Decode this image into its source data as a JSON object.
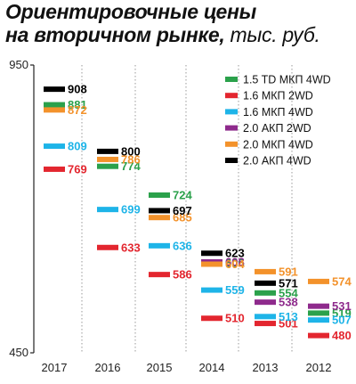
{
  "title": {
    "line1": "Ориентировочные цены",
    "line2": "на вторичном рынке,",
    "unit": " тыс. руб."
  },
  "colors": {
    "green": "#2ba14b",
    "red": "#e3262f",
    "blue": "#1eb4e8",
    "purple": "#8e2a8c",
    "orange": "#f3922b",
    "black": "#000000"
  },
  "chart_data": {
    "type": "scatter",
    "title": "Ориентировочные цены на вторичном рынке, тыс. руб.",
    "categories": [
      "2017",
      "2016",
      "2015",
      "2014",
      "2013",
      "2012"
    ],
    "ylim": [
      450,
      950
    ],
    "yticks": [
      450,
      950
    ],
    "legend_position": "top-right",
    "series": [
      {
        "name": "1.5 TD МКП 4WD",
        "color": "green",
        "values": [
          881,
          774,
          724,
          606,
          554,
          519
        ]
      },
      {
        "name": "1.6 МКП 2WD",
        "color": "red",
        "values": [
          769,
          633,
          586,
          510,
          501,
          480
        ]
      },
      {
        "name": "1.6 МКП 4WD",
        "color": "blue",
        "values": [
          809,
          699,
          636,
          559,
          513,
          507
        ]
      },
      {
        "name": "2.0 АКП 2WD",
        "color": "purple",
        "values": [
          null,
          null,
          null,
          608,
          538,
          531
        ]
      },
      {
        "name": "2.0 МКП 4WD",
        "color": "orange",
        "values": [
          872,
          786,
          685,
          604,
          591,
          574
        ]
      },
      {
        "name": "2.0 АКП 4WD",
        "color": "black",
        "values": [
          908,
          800,
          697,
          623,
          571,
          null
        ]
      }
    ]
  }
}
